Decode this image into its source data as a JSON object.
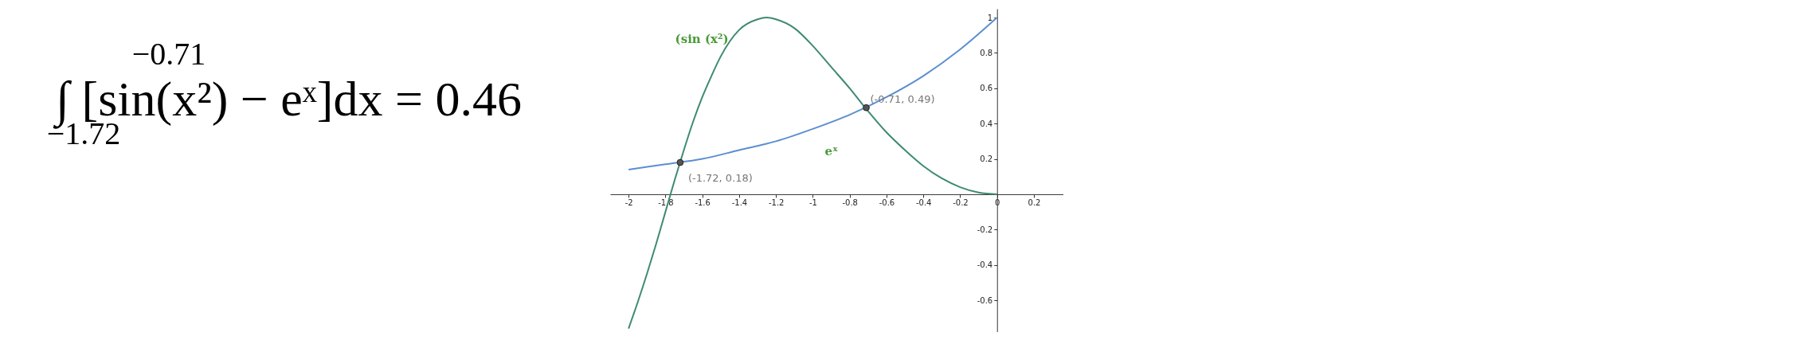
{
  "chart_data": {
    "type": "line",
    "annotations": [
      "−0.71",
      "∫ [sin(x²) − eˣ]dx = 0.46",
      "−1.72",
      {
        "text": "(-1.72, 0.18)",
        "x": -1.72,
        "y": 0.18
      },
      {
        "text": "(-0.71, 0.49)",
        "x": -0.71,
        "y": 0.49
      }
    ],
    "series": [
      {
        "name": "(sin (x²)",
        "color": "#3d8a72",
        "x": [
          -2,
          -1.95,
          -1.9,
          -1.85,
          -1.8,
          -1.75,
          -1.7,
          -1.65,
          -1.6,
          -1.55,
          -1.5,
          -1.4,
          -1.3,
          -1.25,
          -1.2,
          -1.1,
          -1,
          -0.9,
          -0.8,
          -0.7,
          -0.6,
          -0.5,
          -0.4,
          -0.3,
          -0.2,
          -0.1,
          0
        ],
        "values": [
          -0.76,
          -0.61,
          -0.45,
          -0.28,
          -0.1,
          0.08,
          0.25,
          0.41,
          0.55,
          0.67,
          0.78,
          0.93,
          0.99,
          1,
          0.99,
          0.94,
          0.84,
          0.72,
          0.6,
          0.47,
          0.35,
          0.25,
          0.16,
          0.09,
          0.04,
          0.01,
          0
        ]
      },
      {
        "name": "eˣ",
        "color": "#5b8fd0",
        "x": [
          -2,
          -1.8,
          -1.6,
          -1.4,
          -1.2,
          -1,
          -0.8,
          -0.6,
          -0.4,
          -0.2,
          0
        ],
        "values": [
          0.14,
          0.17,
          0.2,
          0.25,
          0.3,
          0.37,
          0.45,
          0.55,
          0.67,
          0.82,
          1
        ]
      },
      {
        "type": "scatter",
        "color": "#555555",
        "marker": "circle",
        "x": [
          -1.72,
          -0.71
        ],
        "values": [
          0.18,
          0.49
        ]
      }
    ],
    "xlim": [
      -2.1,
      0.36
    ],
    "xticks": [
      -2,
      -1.8,
      -1.6,
      -1.4,
      -1.2,
      -1,
      -0.8,
      -0.6,
      -0.4,
      -0.2,
      0,
      0.2
    ],
    "ylim": [
      -0.78,
      1.05
    ],
    "yticks": [
      -0.6,
      -0.4,
      -0.2,
      0.2,
      0.4,
      0.6,
      0.8,
      1
    ]
  }
}
